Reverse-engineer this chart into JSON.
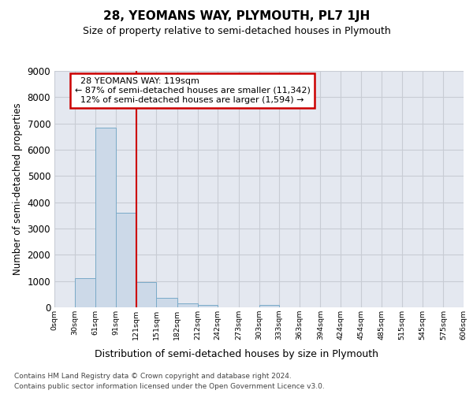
{
  "title": "28, YEOMANS WAY, PLYMOUTH, PL7 1JH",
  "subtitle": "Size of property relative to semi-detached houses in Plymouth",
  "xlabel": "Distribution of semi-detached houses by size in Plymouth",
  "ylabel": "Number of semi-detached properties",
  "property_label": "28 YEOMANS WAY: 119sqm",
  "pct_smaller": 87,
  "n_smaller": "11,342",
  "pct_larger": 12,
  "n_larger": "1,594",
  "bar_edges": [
    0,
    30,
    61,
    91,
    121,
    151,
    182,
    212,
    242,
    273,
    303,
    333,
    363,
    394,
    424,
    454,
    485,
    515,
    545,
    576,
    606
  ],
  "bar_heights": [
    0,
    1100,
    6850,
    3600,
    950,
    360,
    150,
    90,
    5,
    0,
    95,
    0,
    0,
    0,
    0,
    0,
    0,
    0,
    0,
    0
  ],
  "bar_color": "#ccd9e8",
  "bar_edge_color": "#7aaac8",
  "vline_color": "#cc0000",
  "vline_x": 121,
  "annotation_box_color": "#cc0000",
  "grid_color": "#c8ccd4",
  "bg_color": "#e4e8f0",
  "ylim": [
    0,
    9000
  ],
  "yticks": [
    0,
    1000,
    2000,
    3000,
    4000,
    5000,
    6000,
    7000,
    8000,
    9000
  ],
  "xtick_labels": [
    "0sqm",
    "30sqm",
    "61sqm",
    "91sqm",
    "121sqm",
    "151sqm",
    "182sqm",
    "212sqm",
    "242sqm",
    "273sqm",
    "303sqm",
    "333sqm",
    "363sqm",
    "394sqm",
    "424sqm",
    "454sqm",
    "485sqm",
    "515sqm",
    "545sqm",
    "575sqm",
    "606sqm"
  ],
  "footer_line1": "Contains HM Land Registry data © Crown copyright and database right 2024.",
  "footer_line2": "Contains public sector information licensed under the Open Government Licence v3.0."
}
